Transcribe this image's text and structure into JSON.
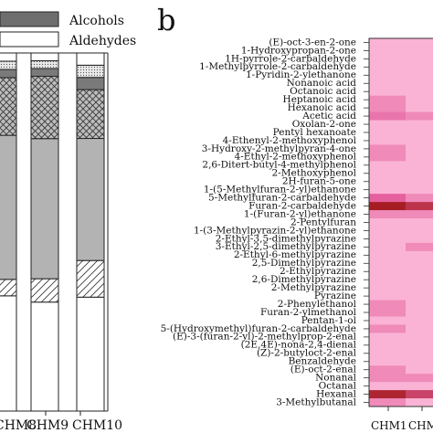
{
  "panel_label": "b",
  "chart_data": [
    {
      "type": "bar",
      "stacked": true,
      "categories": [
        "CHM8",
        "CHM9",
        "CHM10"
      ],
      "legend": [
        "Alcohols",
        "Aldehydes"
      ],
      "legend_position": "top",
      "series": [
        {
          "name": "Aldehydes",
          "fill": "white",
          "values": [
            28,
            28,
            28
          ]
        },
        {
          "name": "",
          "fill": "hatch-diagonal",
          "values": [
            4,
            6,
            9
          ]
        },
        {
          "name": "",
          "fill": "gray",
          "values": [
            35,
            36,
            30
          ]
        },
        {
          "name": "",
          "fill": "hatch-cross",
          "values": [
            14,
            16,
            12
          ]
        },
        {
          "name": "",
          "fill": "dark-gray",
          "values": [
            2,
            2,
            3
          ]
        },
        {
          "name": "",
          "fill": "light-dots",
          "values": [
            2,
            2,
            3
          ]
        },
        {
          "name": "",
          "fill": "white",
          "values": [
            2,
            2,
            3
          ]
        }
      ]
    },
    {
      "type": "heatmap",
      "columns": [
        "CHM1",
        "CHM"
      ],
      "rows": [
        "(E)-oct-3-en-2-one",
        "1-Hydroxypropan-2-one",
        "1H-pyrrole-2-carbaldehyde",
        "1-Methylpyrrole-2-carbaldehyde",
        "1-Pyridin-2-ylethanone",
        "Nonanoic acid",
        "Octanoic acid",
        "Heptanoic acid",
        "Hexanoic acid",
        "Acetic acid",
        "Oxolan-2-one",
        "Pentyl hexanoate",
        "4-Ethenyl-2-methoxyphenol",
        "3-Hydroxy-2-methylpyran-4-one",
        "4-Ethyl-2-methoxyphenol",
        "2,6-Ditert-butyl-4-methylphenol",
        "2-Methoxyphenol",
        "2H-furan-5-one",
        "1-(5-Methylfuran-2-yl)ethanone",
        "5-Methylfuran-2-carbaldehyde",
        "Furan-2-carbaldehyde",
        "1-(Furan-2-yl)ethanone",
        "2-Pentylfuran",
        "1-(3-Methylpyrazin-2-yl)ethanone",
        "2-Ethyl-3,5-dimethylpyrazine",
        "3-Ethyl-2,5-dimethylpyrazine",
        "2-Ethyl-6-methylpyrazine",
        "2,5-Dimethylpyrazine",
        "2-Ethylpyrazine",
        "2,6-Dimethylpyrazine",
        "2-Methylpyrazine",
        "Pyrazine",
        "2-Phenylethanol",
        "Furan-2-ylmethanol",
        "Pentan-1-ol",
        "5-(Hydroxymethyl)furan-2-carbaldehyde",
        "(E)-3-(furan-2-yl)-2-methylprop-2-enal",
        "(2E,4E)-nona-2,4-dienal",
        "(Z)-2-butyloct-2-enal",
        "Benzaldehyde",
        "(E)-oct-2-enal",
        "Nonanal",
        "Octanal",
        "Hexanal",
        "3-Methylbutanal"
      ],
      "values": [
        [
          0.1,
          0.1
        ],
        [
          0.1,
          0.1
        ],
        [
          0.1,
          0.1
        ],
        [
          0.1,
          0.1
        ],
        [
          0.1,
          0.1
        ],
        [
          0.1,
          0.1
        ],
        [
          0.1,
          0.1
        ],
        [
          0.3,
          0.1
        ],
        [
          0.3,
          0.1
        ],
        [
          0.4,
          0.3
        ],
        [
          0.1,
          0.1
        ],
        [
          0.1,
          0.1
        ],
        [
          0.1,
          0.1
        ],
        [
          0.3,
          0.1
        ],
        [
          0.3,
          0.1
        ],
        [
          0.1,
          0.1
        ],
        [
          0.1,
          0.1
        ],
        [
          0.1,
          0.1
        ],
        [
          0.1,
          0.1
        ],
        [
          0.5,
          0.3
        ],
        [
          0.95,
          0.8
        ],
        [
          0.3,
          0.3
        ],
        [
          0.1,
          0.1
        ],
        [
          0.1,
          0.1
        ],
        [
          0.1,
          0.1
        ],
        [
          0.1,
          0.3
        ],
        [
          0.1,
          0.1
        ],
        [
          0.1,
          0.1
        ],
        [
          0.1,
          0.1
        ],
        [
          0.1,
          0.1
        ],
        [
          0.1,
          0.1
        ],
        [
          0.1,
          0.1
        ],
        [
          0.3,
          0.1
        ],
        [
          0.3,
          0.1
        ],
        [
          0.1,
          0.1
        ],
        [
          0.3,
          0.1
        ],
        [
          0.1,
          0.1
        ],
        [
          0.1,
          0.1
        ],
        [
          0.1,
          0.1
        ],
        [
          0.1,
          0.1
        ],
        [
          0.3,
          0.1
        ],
        [
          0.3,
          0.3
        ],
        [
          0.1,
          0.1
        ],
        [
          0.9,
          0.7
        ],
        [
          0.3,
          0.1
        ]
      ]
    }
  ]
}
